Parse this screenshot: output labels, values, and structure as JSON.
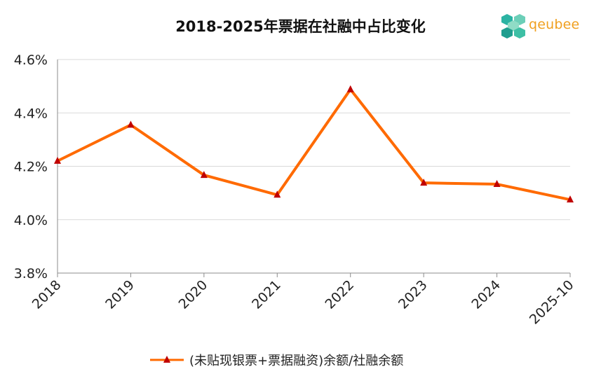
{
  "chart_data": {
    "type": "line",
    "title": "2018-2025年票据在社融中占比变化",
    "categories": [
      "2018",
      "2019",
      "2020",
      "2021",
      "2022",
      "2023",
      "2024",
      "2025-10"
    ],
    "series": [
      {
        "name": "(未贴现银票+票据融资)余额/社融余额",
        "values": [
          4.22,
          4.355,
          4.167,
          4.093,
          4.488,
          4.138,
          4.133,
          4.075
        ],
        "line_color": "#ff6a00",
        "marker_color": "#c00000",
        "marker": "triangle"
      }
    ],
    "y_ticks": [
      "3.8%",
      "4.0%",
      "4.2%",
      "4.4%",
      "4.6%"
    ],
    "ylim": [
      3.8,
      4.6
    ],
    "y_unit": "%",
    "grid": true,
    "legend_position": "bottom"
  },
  "logo": {
    "text": "qeubee",
    "colors": [
      "#2bb3a3",
      "#f0a020"
    ]
  }
}
